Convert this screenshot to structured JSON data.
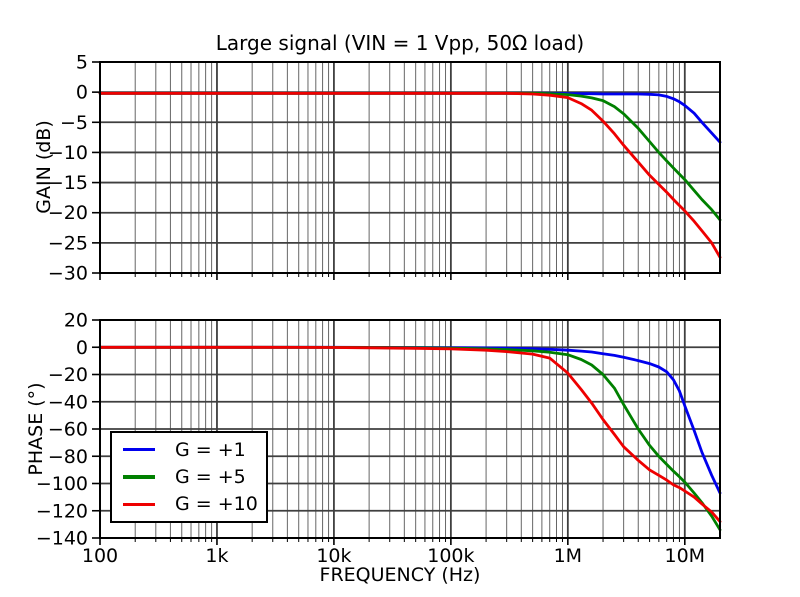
{
  "figure": {
    "title": "Large signal (VIN = 1 Vpp, 50Ω load)",
    "xlabel": "FREQUENCY (Hz)",
    "background_color": "#ffffff",
    "axis_color": "#000000",
    "grid_major_color": "#3f3f3f",
    "grid_minor_color": "#666666",
    "x_ticks": {
      "values": [
        100,
        1000,
        10000,
        100000,
        1000000,
        10000000
      ],
      "labels": [
        "100",
        "1k",
        "10k",
        "100k",
        "1M",
        "10M"
      ]
    }
  },
  "legend": {
    "position": "lower left of phase plot",
    "entries": [
      {
        "label": "G = +1",
        "color": "#0000ee"
      },
      {
        "label": "G = +5",
        "color": "#008000"
      },
      {
        "label": "G = +10",
        "color": "#ee0000"
      }
    ]
  },
  "chart_data": [
    {
      "type": "line",
      "subplot": "gain",
      "ylabel": "GAIN (dB)",
      "xscale": "log",
      "xlim": [
        100,
        20000000
      ],
      "ylim": [
        -30,
        5
      ],
      "grid": "both",
      "ytick_values": [
        5,
        0,
        -5,
        -10,
        -15,
        -20,
        -25,
        -30
      ],
      "ytick_labels": [
        "5",
        "0",
        "−5",
        "−10",
        "−15",
        "−20",
        "−25",
        "−30"
      ],
      "show_x_tick_labels": false,
      "x_hz": [
        100,
        200,
        500,
        1000,
        2000,
        5000,
        10000,
        20000,
        50000,
        100000,
        200000,
        300000,
        500000,
        700000,
        1000000,
        1300000,
        1600000,
        2000000,
        2500000,
        3000000,
        4000000,
        5000000,
        6000000,
        7000000,
        8000000,
        9000000,
        10000000,
        12000000,
        14000000,
        17000000,
        20000000
      ],
      "series": [
        {
          "name": "G = +1",
          "color": "#0000ee",
          "values_db": [
            -0.2,
            -0.2,
            -0.2,
            -0.2,
            -0.2,
            -0.2,
            -0.2,
            -0.2,
            -0.2,
            -0.2,
            -0.2,
            -0.2,
            -0.2,
            -0.2,
            -0.25,
            -0.25,
            -0.25,
            -0.3,
            -0.3,
            -0.3,
            -0.3,
            -0.35,
            -0.45,
            -0.7,
            -1.1,
            -1.6,
            -2.2,
            -3.5,
            -5.0,
            -6.8,
            -8.3
          ]
        },
        {
          "name": "G = +5",
          "color": "#008000",
          "values_db": [
            -0.2,
            -0.2,
            -0.2,
            -0.2,
            -0.2,
            -0.2,
            -0.2,
            -0.2,
            -0.2,
            -0.2,
            -0.2,
            -0.2,
            -0.2,
            -0.25,
            -0.4,
            -0.65,
            -0.95,
            -1.4,
            -2.4,
            -3.6,
            -6.0,
            -8.2,
            -10.0,
            -11.4,
            -12.6,
            -13.6,
            -14.5,
            -16.3,
            -17.8,
            -19.5,
            -21.2
          ]
        },
        {
          "name": "G = +10",
          "color": "#ee0000",
          "values_db": [
            -0.2,
            -0.2,
            -0.2,
            -0.2,
            -0.2,
            -0.2,
            -0.2,
            -0.2,
            -0.2,
            -0.2,
            -0.2,
            -0.2,
            -0.3,
            -0.5,
            -0.9,
            -1.9,
            -3.0,
            -4.8,
            -6.9,
            -8.8,
            -11.6,
            -13.8,
            -15.3,
            -16.6,
            -17.8,
            -18.8,
            -19.7,
            -21.4,
            -23.0,
            -25.0,
            -27.4
          ]
        }
      ]
    },
    {
      "type": "line",
      "subplot": "phase",
      "ylabel": "PHASE (°)",
      "xscale": "log",
      "xlim": [
        100,
        20000000
      ],
      "ylim": [
        -140,
        20
      ],
      "grid": "both",
      "ytick_values": [
        20,
        0,
        -20,
        -40,
        -60,
        -80,
        -100,
        -120,
        -140
      ],
      "ytick_labels": [
        "20",
        "0",
        "−20",
        "−40",
        "−60",
        "−80",
        "−100",
        "−120",
        "−140"
      ],
      "show_x_tick_labels": true,
      "x_hz": [
        100,
        200,
        500,
        1000,
        2000,
        5000,
        10000,
        20000,
        50000,
        100000,
        200000,
        300000,
        500000,
        700000,
        1000000,
        1300000,
        1600000,
        2000000,
        2500000,
        3000000,
        4000000,
        5000000,
        6000000,
        7000000,
        8000000,
        9000000,
        10000000,
        12000000,
        14000000,
        17000000,
        20000000
      ],
      "series": [
        {
          "name": "G = +1",
          "color": "#0000ee",
          "values_deg": [
            0,
            0,
            0,
            0,
            0,
            0,
            0,
            -0.1,
            -0.2,
            -0.3,
            -0.5,
            -0.7,
            -1.0,
            -1.5,
            -2.2,
            -2.8,
            -3.5,
            -4.7,
            -6.0,
            -7.4,
            -9.8,
            -12.0,
            -14.5,
            -18.0,
            -24.0,
            -32.0,
            -43.0,
            -61.0,
            -77.0,
            -94.0,
            -107.0
          ]
        },
        {
          "name": "G = +5",
          "color": "#008000",
          "values_deg": [
            0,
            0,
            0,
            0,
            0,
            0,
            -0.1,
            -0.2,
            -0.4,
            -0.6,
            -1.2,
            -1.7,
            -2.6,
            -3.6,
            -5.5,
            -9.0,
            -13.0,
            -20.0,
            -30.0,
            -42.0,
            -60.0,
            -72.0,
            -80.0,
            -86.0,
            -91.0,
            -95.0,
            -99.0,
            -107.0,
            -114.0,
            -124.0,
            -134.0
          ]
        },
        {
          "name": "G = +10",
          "color": "#ee0000",
          "values_deg": [
            0,
            0,
            0,
            0,
            0,
            -0.1,
            -0.2,
            -0.4,
            -0.8,
            -1.2,
            -2.2,
            -3.2,
            -5.0,
            -8.0,
            -19.0,
            -31.0,
            -41.0,
            -53.0,
            -64.0,
            -73.0,
            -83.0,
            -90.0,
            -94.0,
            -97.5,
            -101.0,
            -103.0,
            -105.5,
            -110.0,
            -115.0,
            -121.0,
            -128.0
          ]
        }
      ]
    }
  ]
}
